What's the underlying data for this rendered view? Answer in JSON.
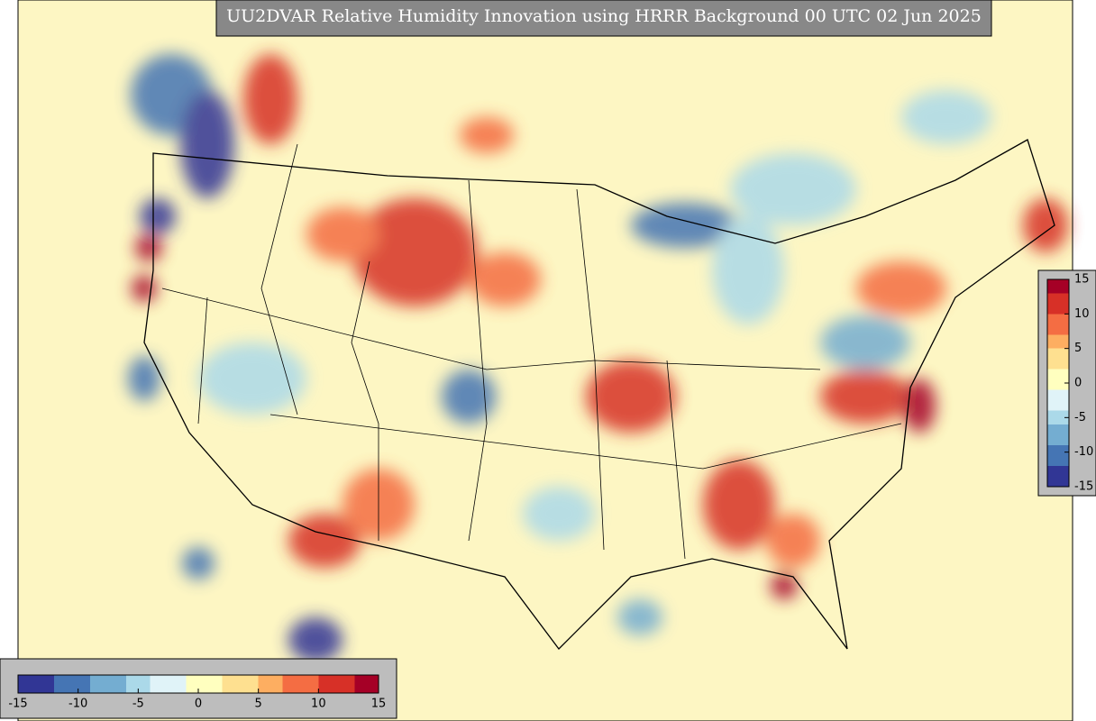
{
  "title": "UU2DVAR Relative Humidity Innovation using HRRR Background 00 UTC 02 Jun 2025",
  "colormap": [
    "#313695",
    "#4575b4",
    "#74add1",
    "#abd9e9",
    "#e0f3f8",
    "#ffffbf",
    "#fee090",
    "#fdae61",
    "#f46d43",
    "#d73027",
    "#a50026"
  ],
  "vertical_colorbar": {
    "limits": [
      -15,
      15
    ],
    "ticks": [
      -15,
      -10,
      -5,
      0,
      5,
      10,
      15
    ]
  },
  "horizontal_colorbar": {
    "limits": [
      -15,
      15
    ],
    "ticks": [
      -15,
      -10,
      -5,
      0,
      5,
      10,
      15
    ]
  }
}
